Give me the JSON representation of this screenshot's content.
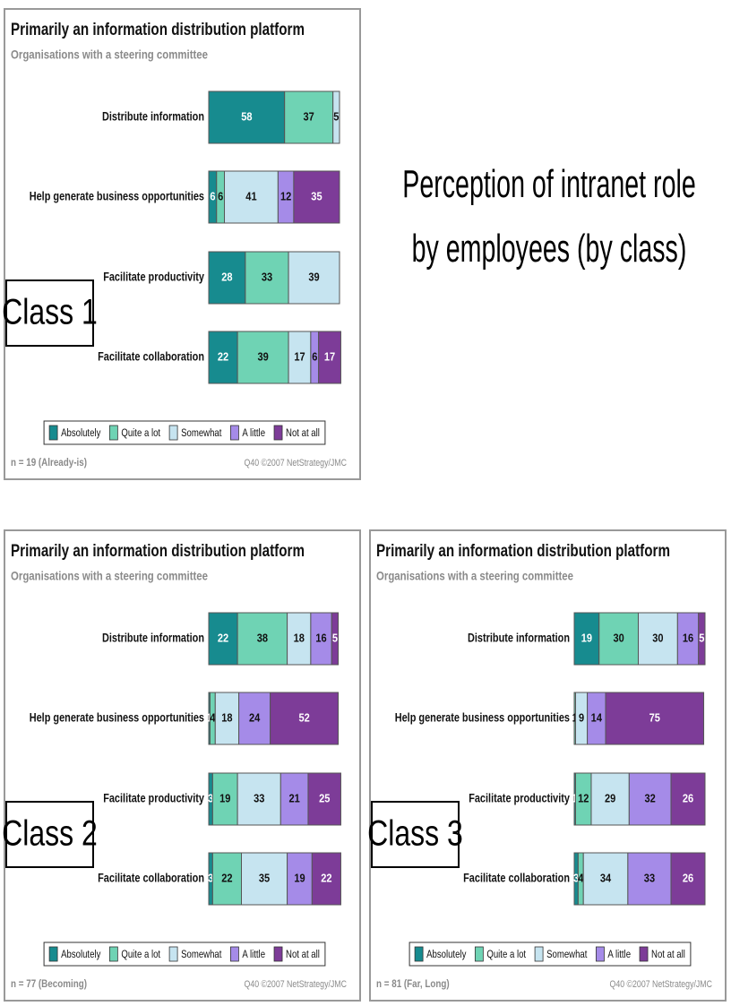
{
  "heading": "Perception of intranet role by employees (by class)",
  "chart_data": [
    {
      "type": "bar",
      "orientation": "horizontal",
      "stacked": true,
      "title": "Primarily an information distribution platform",
      "subtitle": "Organisations with a steering committee",
      "class_label": "Class 1",
      "note": "n = 19 (Already-is)",
      "source": "Q40   ©2007 NetStrategy/JMC",
      "categories": [
        "Distribute information",
        "Help generate business opportunities",
        "Facilitate productivity",
        "Facilitate collaboration"
      ],
      "series": [
        {
          "name": "Absolutely",
          "color": "#178b8f",
          "label_color": "#ffffff",
          "values": [
            58,
            6,
            28,
            22
          ]
        },
        {
          "name": "Quite a lot",
          "color": "#6fd3b4",
          "label_color": "#111111",
          "values": [
            37,
            6,
            33,
            39
          ]
        },
        {
          "name": "Somewhat",
          "color": "#c6e4f0",
          "label_color": "#111111",
          "values": [
            5,
            41,
            39,
            17
          ]
        },
        {
          "name": "A little",
          "color": "#a58be8",
          "label_color": "#111111",
          "values": [
            0,
            12,
            0,
            6
          ]
        },
        {
          "name": "Not at all",
          "color": "#7d3c98",
          "label_color": "#ffffff",
          "values": [
            0,
            35,
            0,
            17
          ]
        }
      ]
    },
    {
      "type": "bar",
      "orientation": "horizontal",
      "stacked": true,
      "title": "Primarily an information distribution platform",
      "subtitle": "Organisations with a steering committee",
      "class_label": "Class 2",
      "note": "n = 77 (Becoming)",
      "source": "Q40   ©2007 NetStrategy/JMC",
      "categories": [
        "Distribute information",
        "Help generate business opportunities",
        "Facilitate productivity",
        "Facilitate collaboration"
      ],
      "series": [
        {
          "name": "Absolutely",
          "color": "#178b8f",
          "label_color": "#ffffff",
          "values": [
            22,
            1,
            3,
            3
          ]
        },
        {
          "name": "Quite a lot",
          "color": "#6fd3b4",
          "label_color": "#111111",
          "values": [
            38,
            4,
            19,
            22
          ]
        },
        {
          "name": "Somewhat",
          "color": "#c6e4f0",
          "label_color": "#111111",
          "values": [
            18,
            18,
            33,
            35
          ]
        },
        {
          "name": "A little",
          "color": "#a58be8",
          "label_color": "#111111",
          "values": [
            16,
            24,
            21,
            19
          ]
        },
        {
          "name": "Not at all",
          "color": "#7d3c98",
          "label_color": "#ffffff",
          "values": [
            5,
            52,
            25,
            22
          ]
        }
      ]
    },
    {
      "type": "bar",
      "orientation": "horizontal",
      "stacked": true,
      "title": "Primarily an information distribution platform",
      "subtitle": "Organisations with a steering committee",
      "class_label": "Class 3",
      "note": "n = 81 (Far, Long)",
      "source": "Q40   ©2007 NetStrategy/JMC",
      "categories": [
        "Distribute information",
        "Help generate business opportunities",
        "Facilitate productivity",
        "Facilitate collaboration"
      ],
      "series": [
        {
          "name": "Absolutely",
          "color": "#178b8f",
          "label_color": "#ffffff",
          "values": [
            19,
            0,
            1,
            3
          ]
        },
        {
          "name": "Quite a lot",
          "color": "#6fd3b4",
          "label_color": "#111111",
          "values": [
            30,
            1,
            12,
            4
          ]
        },
        {
          "name": "Somewhat",
          "color": "#c6e4f0",
          "label_color": "#111111",
          "values": [
            30,
            9,
            29,
            34
          ]
        },
        {
          "name": "A little",
          "color": "#a58be8",
          "label_color": "#111111",
          "values": [
            16,
            14,
            32,
            33
          ]
        },
        {
          "name": "Not at all",
          "color": "#7d3c98",
          "label_color": "#ffffff",
          "values": [
            5,
            75,
            26,
            26
          ]
        }
      ]
    }
  ]
}
